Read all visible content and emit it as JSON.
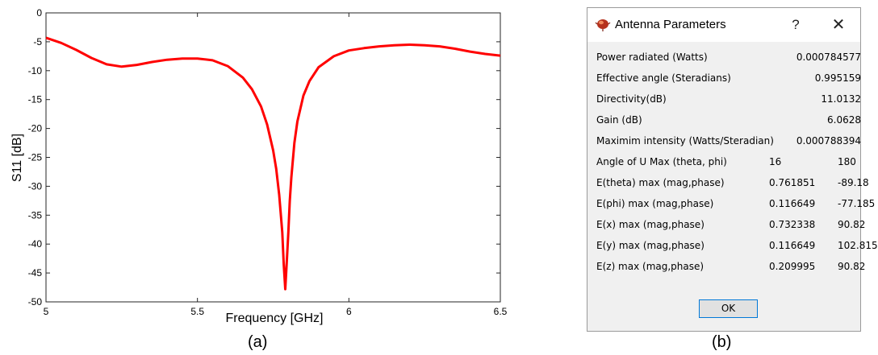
{
  "chart_data": {
    "type": "line",
    "xlabel": "Frequency [GHz]",
    "ylabel": "S11 [dB]",
    "xlim": [
      5,
      6.5
    ],
    "ylim": [
      -50,
      0
    ],
    "x_ticks": [
      "5",
      "5.5",
      "6",
      "6.5"
    ],
    "y_ticks": [
      "0",
      "-5",
      "-10",
      "-15",
      "-20",
      "-25",
      "-30",
      "-35",
      "-40",
      "-45",
      "-50"
    ],
    "grid": false,
    "series": [
      {
        "color": "#ff0000",
        "x": [
          5.0,
          5.05,
          5.1,
          5.15,
          5.2,
          5.25,
          5.3,
          5.35,
          5.4,
          5.45,
          5.5,
          5.55,
          5.6,
          5.65,
          5.68,
          5.71,
          5.73,
          5.75,
          5.76,
          5.77,
          5.78,
          5.785,
          5.79,
          5.795,
          5.8,
          5.805,
          5.81,
          5.82,
          5.83,
          5.85,
          5.87,
          5.9,
          5.95,
          6.0,
          6.05,
          6.1,
          6.15,
          6.2,
          6.25,
          6.3,
          6.35,
          6.4,
          6.45,
          6.5
        ],
        "y": [
          -4.3,
          -5.2,
          -6.4,
          -7.8,
          -8.9,
          -9.3,
          -9.0,
          -8.5,
          -8.1,
          -7.9,
          -7.9,
          -8.2,
          -9.2,
          -11.2,
          -13.2,
          -16.2,
          -19.3,
          -23.8,
          -27.0,
          -31.5,
          -38.0,
          -43.5,
          -47.8,
          -43.0,
          -38.0,
          -32.5,
          -28.5,
          -22.5,
          -18.8,
          -14.3,
          -11.8,
          -9.4,
          -7.5,
          -6.5,
          -6.1,
          -5.8,
          -5.6,
          -5.5,
          -5.6,
          -5.8,
          -6.2,
          -6.7,
          -7.1,
          -7.4
        ]
      }
    ]
  },
  "captions": {
    "a": "(a)",
    "b": "(b)"
  },
  "dialog": {
    "title": "Antenna Parameters",
    "help_glyph": "?",
    "close_glyph": "✕",
    "icon": "app-icon",
    "ok_label": "OK",
    "rows": [
      {
        "label": "Power radiated (Watts)",
        "value": "0.000784577"
      },
      {
        "label": "Effective angle (Steradians)",
        "value": "0.995159"
      },
      {
        "label": "Directivity(dB)",
        "value": "11.0132"
      },
      {
        "label": "Gain (dB)",
        "value": "6.0628"
      },
      {
        "label": "Maximim intensity (Watts/Steradian)",
        "value": "0.000788394"
      },
      {
        "label": "Angle of U Max (theta, phi)",
        "v1": "16",
        "v2": "180"
      },
      {
        "label": "E(theta) max (mag,phase)",
        "v1": "0.761851",
        "v2": "-89.18"
      },
      {
        "label": "E(phi) max (mag,phase)",
        "v1": "0.116649",
        "v2": "-77.185"
      },
      {
        "label": "E(x) max (mag,phase)",
        "v1": "0.732338",
        "v2": "90.82"
      },
      {
        "label": "E(y) max (mag,phase)",
        "v1": "0.116649",
        "v2": "102.815"
      },
      {
        "label": "E(z) max (mag,phase)",
        "v1": "0.209995",
        "v2": "90.82"
      }
    ]
  }
}
